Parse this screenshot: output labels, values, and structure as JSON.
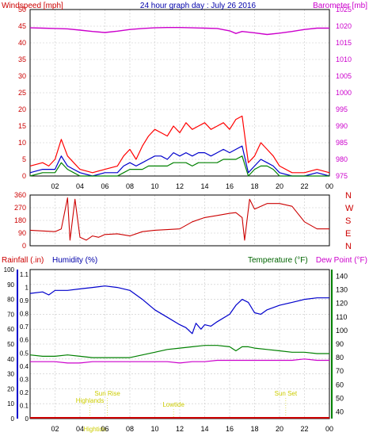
{
  "chart_data": [
    {
      "type": "line",
      "title": "24 hour graph day : July 26 2016",
      "y_left_label": "Windspeed [mph]",
      "y_right_label": "Barometer [mb]",
      "y_left_ticks": [
        "0",
        "5",
        "10",
        "15",
        "20",
        "25",
        "30",
        "35",
        "40",
        "45",
        "50"
      ],
      "y_right_ticks": [
        "975",
        "980",
        "985",
        "990",
        "995",
        "1000",
        "1005",
        "1010",
        "1015",
        "1020",
        "1025"
      ],
      "x_ticks": [
        "02",
        "04",
        "06",
        "08",
        "10",
        "12",
        "14",
        "16",
        "18",
        "20",
        "22",
        "00"
      ],
      "ylim_left": [
        0,
        50
      ],
      "ylim_right": [
        975,
        1025
      ],
      "colors": {
        "gust": "#ff0000",
        "speed": "#0000cc",
        "average": "#008000",
        "barometer": "#cc00cc",
        "axis_left": "#cc0000",
        "axis_right": "#cc00cc"
      },
      "series": [
        {
          "key": "barometer",
          "axis": "right",
          "x": [
            0,
            1,
            2,
            3,
            4,
            5,
            6,
            7,
            8,
            9,
            10,
            11,
            12,
            13,
            14,
            15,
            16,
            16.5,
            17,
            18,
            19,
            20,
            21,
            22,
            23,
            24
          ],
          "y": [
            1019.5,
            1019.4,
            1019.3,
            1019.2,
            1018.8,
            1018.4,
            1018.1,
            1018.5,
            1019.0,
            1019.3,
            1019.5,
            1019.6,
            1019.6,
            1019.5,
            1019.4,
            1019.3,
            1018.6,
            1017.8,
            1018.4,
            1018.0,
            1017.5,
            1017.9,
            1018.4,
            1019.0,
            1019.4,
            1019.4
          ]
        },
        {
          "key": "gust",
          "axis": "left",
          "x": [
            0,
            1,
            1.5,
            2,
            2.5,
            3,
            3.5,
            4,
            5,
            6,
            7,
            7.5,
            8,
            8.5,
            9,
            9.5,
            10,
            10.5,
            11,
            11.5,
            12,
            12.5,
            13,
            13.5,
            14,
            14.5,
            15,
            15.5,
            16,
            16.5,
            17,
            17.5,
            18,
            18.5,
            19,
            19.5,
            20,
            21,
            22,
            23,
            24
          ],
          "y": [
            3,
            4,
            3,
            5,
            11,
            6,
            4,
            2,
            1,
            2,
            3,
            6,
            8,
            5,
            9,
            12,
            14,
            13,
            12,
            15,
            13,
            16,
            14,
            15,
            16,
            14,
            15,
            16,
            14,
            17,
            18,
            4,
            6,
            10,
            8,
            6,
            3,
            1,
            1,
            2,
            1
          ]
        },
        {
          "key": "speed",
          "axis": "left",
          "x": [
            0,
            1,
            2,
            2.5,
            3,
            3.5,
            4,
            5,
            6,
            7,
            7.5,
            8,
            8.5,
            9,
            9.5,
            10,
            10.5,
            11,
            11.5,
            12,
            12.5,
            13,
            13.5,
            14,
            14.5,
            15,
            15.5,
            16,
            16.5,
            17,
            17.5,
            18,
            18.5,
            19,
            19.5,
            20,
            21,
            22,
            23,
            24
          ],
          "y": [
            1,
            2,
            2,
            6,
            3,
            2,
            1,
            0,
            1,
            1,
            3,
            4,
            3,
            4,
            5,
            6,
            6,
            5,
            7,
            6,
            7,
            6,
            7,
            7,
            6,
            7,
            8,
            7,
            8,
            9,
            1,
            3,
            5,
            4,
            3,
            1,
            0,
            0,
            1,
            0
          ]
        },
        {
          "key": "average",
          "axis": "left",
          "x": [
            0,
            1,
            2,
            2.5,
            3,
            3.5,
            4,
            5,
            6,
            7,
            7.5,
            8,
            8.5,
            9,
            9.5,
            10,
            10.5,
            11,
            11.5,
            12,
            12.5,
            13,
            13.5,
            14,
            14.5,
            15,
            15.5,
            16,
            16.5,
            17,
            17.5,
            18,
            18.5,
            19,
            19.5,
            20,
            21,
            22,
            23,
            24
          ],
          "y": [
            0,
            1,
            1,
            4,
            2,
            1,
            0,
            0,
            0,
            0,
            1,
            2,
            2,
            2,
            3,
            3,
            3,
            3,
            4,
            4,
            4,
            3,
            4,
            4,
            4,
            4,
            5,
            5,
            5,
            6,
            0,
            2,
            3,
            3,
            2,
            0,
            0,
            0,
            0,
            0
          ]
        }
      ]
    },
    {
      "type": "line",
      "y_ticks": [
        "0",
        "90",
        "180",
        "270",
        "360"
      ],
      "direction_labels": [
        "N",
        "W",
        "S",
        "E",
        "N"
      ],
      "ylim": [
        0,
        360
      ],
      "colors": {
        "direction": "#cc0000"
      },
      "series": [
        {
          "key": "direction",
          "x": [
            0,
            1,
            2,
            2.5,
            3,
            3.2,
            3.6,
            4,
            4.5,
            5,
            5.5,
            6,
            7,
            8,
            9,
            10,
            11,
            12,
            13,
            14,
            15,
            16,
            16.5,
            17,
            17.2,
            17.6,
            18,
            19,
            20,
            21,
            22,
            23,
            24
          ],
          "y": [
            110,
            105,
            100,
            120,
            340,
            40,
            330,
            60,
            40,
            70,
            60,
            80,
            85,
            70,
            100,
            110,
            115,
            120,
            170,
            200,
            215,
            230,
            235,
            200,
            40,
            330,
            260,
            300,
            300,
            280,
            170,
            120,
            120
          ]
        }
      ]
    },
    {
      "type": "line",
      "y_left_label": "Rainfall (.in)",
      "y_left_label2": "Humidity (%)",
      "y_right_label": "Temperature (°F)",
      "y_right_label2": "Dew Point (°F)",
      "rain_ticks": [
        "0",
        "0.1",
        "0.2",
        "0.3",
        "0.4",
        "0.5",
        "0.6",
        "0.7",
        "0.8",
        "0.9",
        "1",
        "1.1"
      ],
      "humidity_ticks": [
        "0",
        "10",
        "20",
        "30",
        "40",
        "50",
        "60",
        "70",
        "80",
        "90",
        "100"
      ],
      "temp_ticks": [
        "40",
        "50",
        "60",
        "70",
        "80",
        "90",
        "100",
        "110",
        "120",
        "130",
        "140"
      ],
      "ylim_humidity": [
        0,
        100
      ],
      "ylim_temp": [
        35,
        145
      ],
      "colors": {
        "humidity": "#0000cc",
        "temperature": "#008000",
        "dewpoint": "#cc00cc",
        "rain": "#cc0000",
        "axis_humidity": "#0000cc",
        "axis_temp": "#008000"
      },
      "annotations": [
        {
          "text": "Sun Rise",
          "x": 6.2
        },
        {
          "text": "Highlands",
          "x": 4.8
        },
        {
          "text": "Lowtide",
          "x": 11.5
        },
        {
          "text": "Sun Set",
          "x": 20.5
        },
        {
          "text": "Hightide",
          "x": 5.2
        }
      ],
      "series": [
        {
          "key": "humidity",
          "x": [
            0,
            1,
            1.5,
            2,
            3,
            4,
            5,
            6,
            7,
            8,
            9,
            10,
            11,
            12,
            12.5,
            13,
            13.3,
            13.7,
            14,
            14.5,
            15,
            16,
            16.5,
            17,
            17.5,
            18,
            18.5,
            19,
            20,
            21,
            22,
            23,
            24
          ],
          "y": [
            84,
            85,
            83,
            86,
            86,
            87,
            88,
            89,
            88,
            86,
            80,
            73,
            68,
            63,
            61,
            57,
            64,
            60,
            63,
            62,
            65,
            70,
            76,
            80,
            78,
            71,
            70,
            73,
            76,
            78,
            80,
            81,
            81
          ]
        },
        {
          "key": "temperature",
          "x": [
            0,
            1,
            2,
            3,
            4,
            5,
            6,
            7,
            8,
            9,
            10,
            11,
            12,
            13,
            14,
            15,
            16,
            16.5,
            17,
            17.5,
            18,
            19,
            20,
            21,
            22,
            23,
            24
          ],
          "y": [
            82,
            81,
            81,
            82,
            81,
            80,
            80,
            80,
            80,
            82,
            84,
            86,
            87,
            88,
            89,
            89,
            88,
            85,
            88,
            88,
            87,
            86,
            85,
            84,
            84,
            83,
            83
          ]
        },
        {
          "key": "dewpoint",
          "x": [
            0,
            1,
            2,
            3,
            4,
            5,
            6,
            7,
            8,
            9,
            10,
            11,
            12,
            13,
            14,
            15,
            16,
            17,
            18,
            19,
            20,
            21,
            22,
            23,
            24
          ],
          "y": [
            77,
            77,
            77,
            76,
            76,
            77,
            77,
            77,
            77,
            77,
            77,
            77,
            76,
            77,
            77,
            78,
            78,
            78,
            78,
            78,
            78,
            78,
            79,
            78,
            78
          ]
        },
        {
          "key": "rain",
          "x": [
            0,
            24
          ],
          "y": [
            0,
            0
          ]
        }
      ]
    }
  ]
}
